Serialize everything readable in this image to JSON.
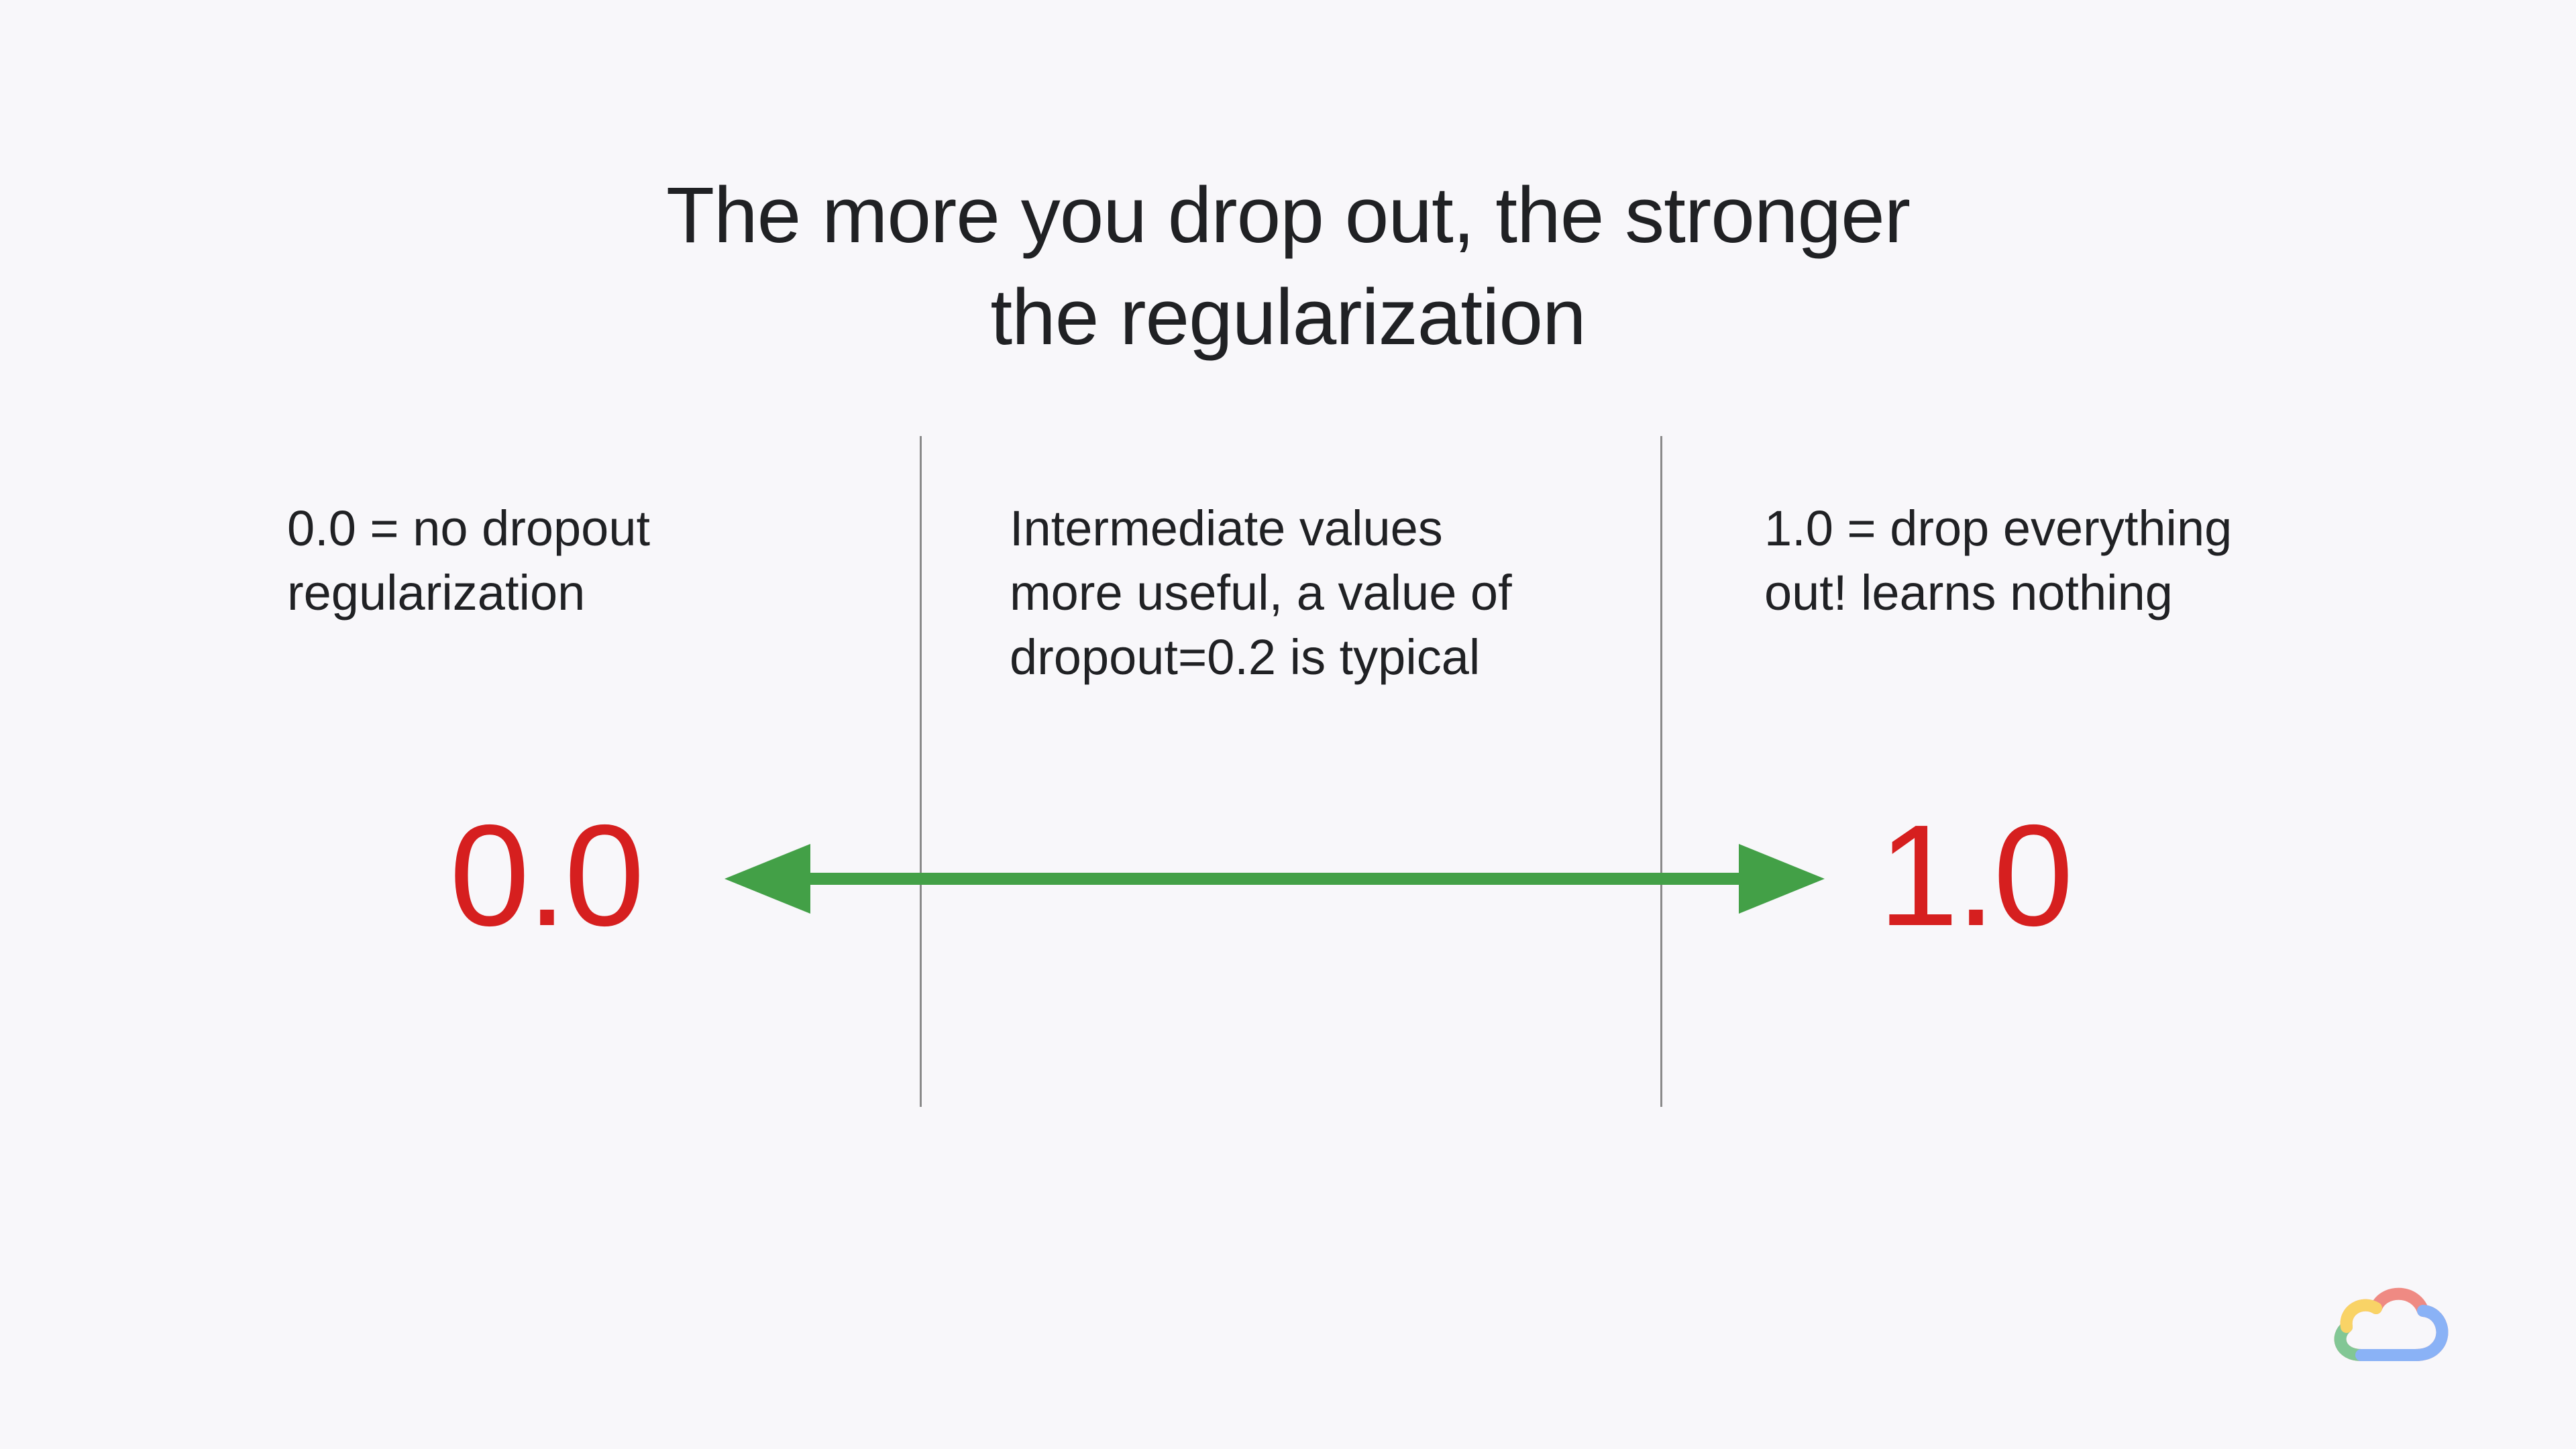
{
  "slide": {
    "title_lines": [
      "The more you drop out, the stronger",
      "the regularization"
    ],
    "left_text_lines": [
      "0.0 = no dropout",
      "regularization"
    ],
    "middle_text_lines": [
      "Intermediate values",
      "more useful, a value of",
      "dropout=0.2 is typical"
    ],
    "right_text_lines": [
      "1.0 = drop everything",
      "out!  learns nothing"
    ],
    "left_value": "0.0",
    "right_value": "1.0",
    "arrow": {
      "direction": "double-headed",
      "color": "#43a047"
    },
    "value_color": "#d61f1f",
    "logo": {
      "icon": "google-cloud-logo-icon",
      "colors": [
        "#ea4335",
        "#fbbc04",
        "#34a853",
        "#4285f4"
      ]
    }
  }
}
